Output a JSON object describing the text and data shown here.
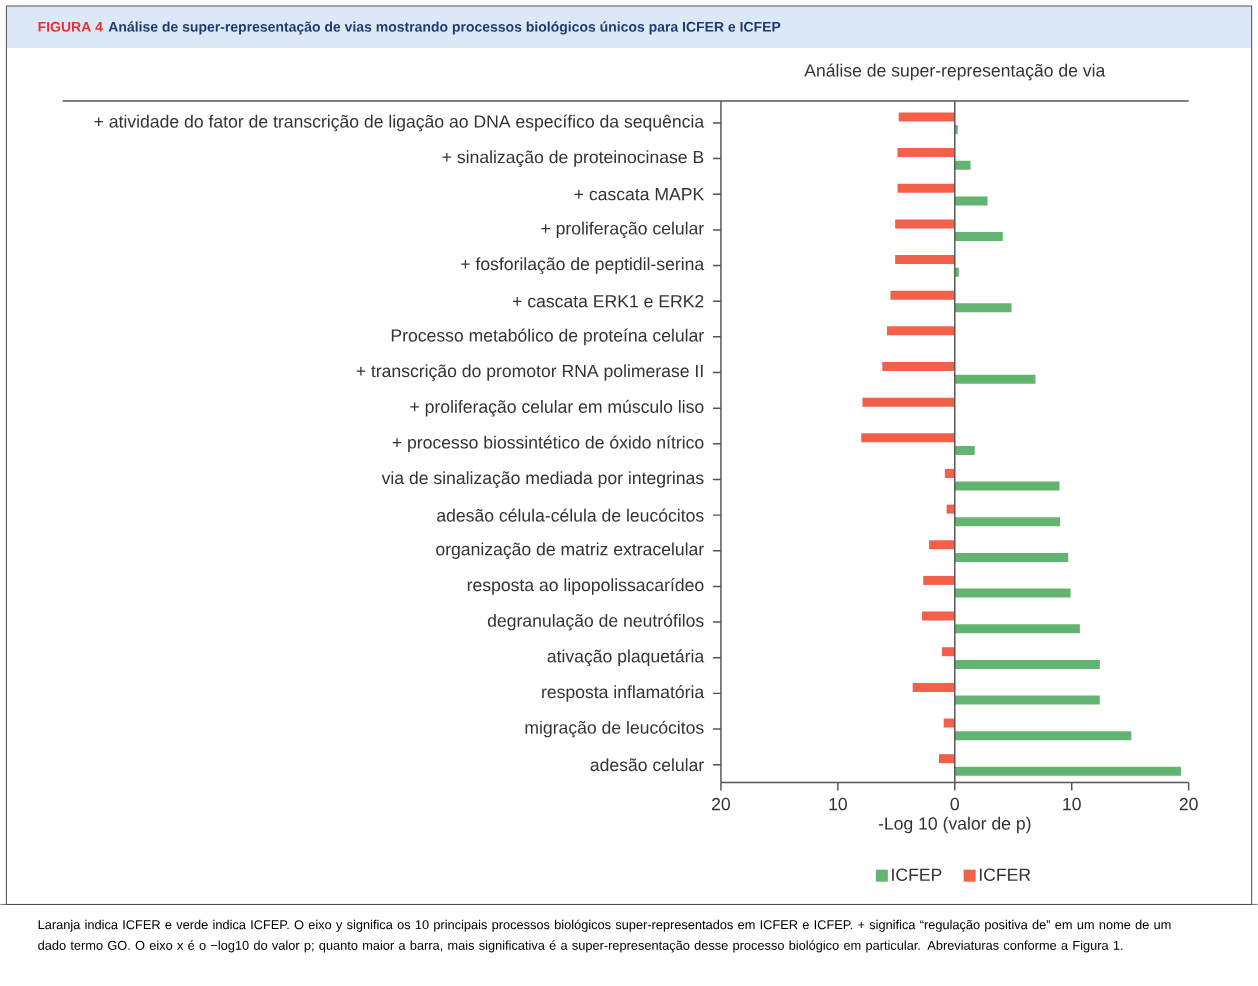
{
  "chart_data": {
    "type": "bar",
    "orientation": "horizontal",
    "title": "Análise de super-representação de vias mostrando processos biológicos únicos para ICFER e ICFEP",
    "subtitle": "Análise de super-representação de via",
    "xlabel": "-Log 10 (valor de p)",
    "categories": [
      "+ atividade do fator de transcrição de ligação ao DNA específico da sequência",
      "+ sinalização de proteinocinase B",
      "+ cascata MAPK",
      "+ proliferação celular",
      "+ fosforilação de peptidil-serina",
      "+ cascata ERK1 e ERK2",
      "Processo metabólico de proteína celular",
      "+ transcrição do promotor RNA polimerase II",
      "+ proliferação celular em músculo liso",
      "+ processo biossintético de óxido nítrico",
      "via de sinalização mediada por integrinas",
      "adesão célula-célula de leucócitos",
      "organização de matriz extracelular",
      "resposta ao lipopolissacarídeo",
      "degranulação de neutrófilos",
      "ativação plaquetária",
      "resposta inflamatória",
      "migração de leucócitos",
      "adesão celular"
    ],
    "series": [
      {
        "name": "ICFEP",
        "color": "#62b470",
        "values": [
          0.25,
          1.35,
          2.8,
          4.1,
          0.35,
          4.85,
          null,
          6.9,
          null,
          1.7,
          8.95,
          9.0,
          9.7,
          9.9,
          10.7,
          12.4,
          12.4,
          15.1,
          19.35
        ]
      },
      {
        "name": "ICFER",
        "color": "#f2604a",
        "values": [
          -4.8,
          -4.9,
          -4.9,
          -5.1,
          -5.1,
          -5.5,
          -5.8,
          -6.2,
          -7.9,
          -8.0,
          -0.85,
          -0.7,
          -2.2,
          -2.7,
          -2.8,
          -1.1,
          -3.6,
          -0.95,
          -1.35
        ]
      }
    ],
    "xlim": [
      -20,
      20
    ],
    "xticks": [
      {
        "value": -20,
        "label": "20"
      },
      {
        "value": -10,
        "label": "10"
      },
      0,
      10,
      20
    ],
    "ref_lines": [
      {
        "axis": "x",
        "value": 0,
        "color": "#555555"
      }
    ],
    "legend": "bottom",
    "annotations": [
      "FIGURA 4",
      "Laranja indica ICFER e verde indica ICFEP. O eixo y significa os 10 principais processos biológicos super-representados em ICFER e ICFEP. + significa “regulação positiva de” em um nome de um dado termo GO. O eixo x é o −log10 do valor p; quanto maior a barra, mais significativa é a super-representação desse processo biológico em particular. Abreviaturas conforme a Figura 1."
    ]
  }
}
